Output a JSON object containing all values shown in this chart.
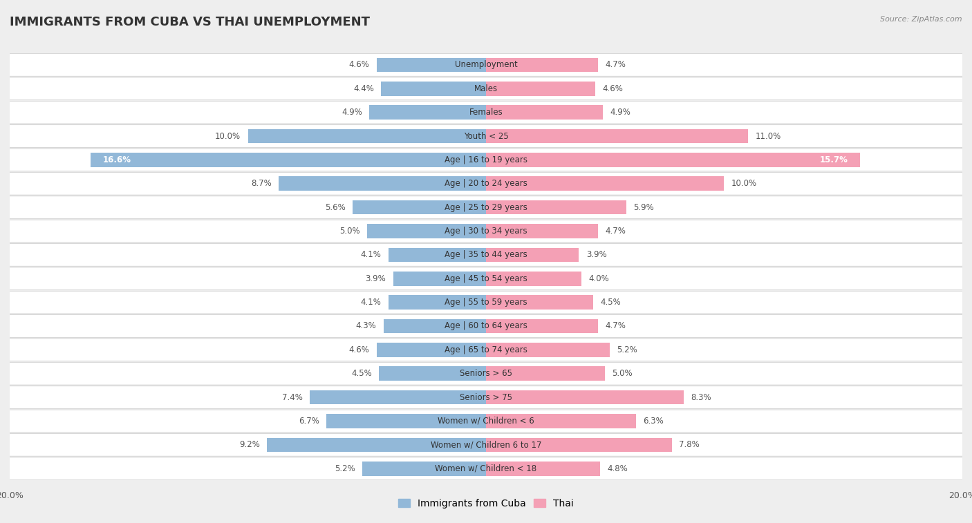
{
  "title": "IMMIGRANTS FROM CUBA VS THAI UNEMPLOYMENT",
  "source": "Source: ZipAtlas.com",
  "categories": [
    "Unemployment",
    "Males",
    "Females",
    "Youth < 25",
    "Age | 16 to 19 years",
    "Age | 20 to 24 years",
    "Age | 25 to 29 years",
    "Age | 30 to 34 years",
    "Age | 35 to 44 years",
    "Age | 45 to 54 years",
    "Age | 55 to 59 years",
    "Age | 60 to 64 years",
    "Age | 65 to 74 years",
    "Seniors > 65",
    "Seniors > 75",
    "Women w/ Children < 6",
    "Women w/ Children 6 to 17",
    "Women w/ Children < 18"
  ],
  "cuba_values": [
    4.6,
    4.4,
    4.9,
    10.0,
    16.6,
    8.7,
    5.6,
    5.0,
    4.1,
    3.9,
    4.1,
    4.3,
    4.6,
    4.5,
    7.4,
    6.7,
    9.2,
    5.2
  ],
  "thai_values": [
    4.7,
    4.6,
    4.9,
    11.0,
    15.7,
    10.0,
    5.9,
    4.7,
    3.9,
    4.0,
    4.5,
    4.7,
    5.2,
    5.0,
    8.3,
    6.3,
    7.8,
    4.8
  ],
  "cuba_color": "#92b8d8",
  "thai_color": "#f4a0b5",
  "background_color": "#eeeeee",
  "row_bg_color": "#ffffff",
  "row_border_color": "#cccccc",
  "xlim": 20.0,
  "bar_height": 0.6,
  "title_fontsize": 13,
  "label_fontsize": 8.5,
  "value_fontsize": 8.5,
  "legend_fontsize": 10,
  "text_color_dark": "#555555",
  "text_color_white": "#ffffff"
}
